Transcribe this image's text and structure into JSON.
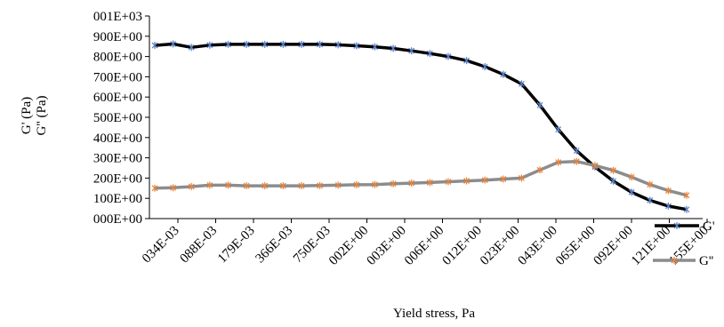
{
  "chart_data": {
    "type": "line",
    "xlabel": "Yield stress, Pa",
    "ylabel_lines": [
      "G' (Pa)",
      "G'' (Pa)"
    ],
    "ylim": [
      0,
      1000
    ],
    "ytick_values": [
      0,
      100,
      200,
      300,
      400,
      500,
      600,
      700,
      800,
      900,
      1000
    ],
    "ytick_labels": [
      "000E+00",
      "100E+00",
      "200E+00",
      "300E+00",
      "400E+00",
      "500E+00",
      "600E+00",
      "700E+00",
      "800E+00",
      "900E+00",
      "001E+03"
    ],
    "xtick_labels": [
      "034E-03",
      "088E-03",
      "179E-03",
      "366E-03",
      "750E-03",
      "002E+00",
      "003E+00",
      "006E+00",
      "012E+00",
      "023E+00",
      "043E+00",
      "065E+00",
      "092E+00",
      "121E+00",
      "155E+00"
    ],
    "legend_position": "bottom-right",
    "series": [
      {
        "name": "G'",
        "color": "#000000",
        "marker_color": "#5b7fc4",
        "values": [
          855,
          862,
          845,
          856,
          860,
          860,
          860,
          860,
          860,
          860,
          858,
          853,
          848,
          840,
          828,
          815,
          800,
          780,
          750,
          712,
          665,
          560,
          440,
          335,
          255,
          185,
          130,
          90,
          62,
          45
        ]
      },
      {
        "name": "G''",
        "color": "#8c8c8c",
        "marker_color": "#e8823a",
        "values": [
          150,
          152,
          158,
          165,
          165,
          162,
          162,
          162,
          162,
          163,
          165,
          167,
          168,
          172,
          175,
          178,
          182,
          186,
          190,
          195,
          200,
          240,
          278,
          282,
          262,
          238,
          205,
          168,
          138,
          115
        ]
      }
    ]
  }
}
